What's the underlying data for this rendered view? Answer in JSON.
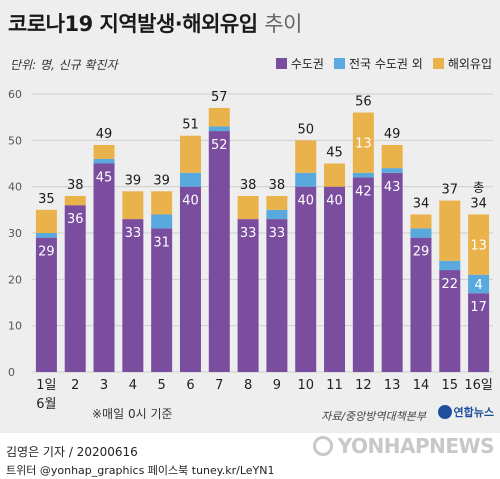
{
  "title": {
    "main": "코로나19 지역발생·해외유입",
    "sub": "추이"
  },
  "unit_label": "단위: 명, 신규 확진자",
  "legend": [
    {
      "label": "수도권",
      "color": "#7b4d9e"
    },
    {
      "label": "전국 수도권 외",
      "color": "#5aa9de"
    },
    {
      "label": "해외유입",
      "color": "#e9b24b"
    }
  ],
  "chart_data": {
    "type": "bar",
    "stacked": true,
    "categories": [
      "1일",
      "2",
      "3",
      "4",
      "5",
      "6",
      "7",
      "8",
      "9",
      "10",
      "11",
      "12",
      "13",
      "14",
      "15",
      "16일"
    ],
    "month_label": "6월",
    "series": [
      {
        "name": "수도권",
        "values": [
          29,
          36,
          45,
          33,
          31,
          40,
          52,
          33,
          33,
          40,
          40,
          42,
          43,
          29,
          22,
          17
        ]
      },
      {
        "name": "전국 수도권 외",
        "values": [
          1,
          0,
          1,
          0,
          3,
          3,
          1,
          0,
          2,
          3,
          0,
          1,
          1,
          2,
          2,
          4
        ]
      },
      {
        "name": "해외유입",
        "values": [
          5,
          2,
          3,
          6,
          5,
          8,
          4,
          5,
          3,
          7,
          5,
          13,
          5,
          3,
          13,
          13
        ]
      }
    ],
    "totals": [
      35,
      38,
      49,
      39,
      39,
      51,
      57,
      38,
      38,
      50,
      45,
      56,
      49,
      34,
      37,
      34
    ],
    "total_prefix_last": "총",
    "inner_labels": [
      {
        "index": 11,
        "series": 2,
        "text": "13"
      },
      {
        "index": 15,
        "series": 1,
        "text": "4"
      },
      {
        "index": 15,
        "series": 2,
        "text": "13"
      }
    ],
    "ylim": [
      0,
      60
    ],
    "yticks": [
      0,
      10,
      20,
      30,
      40,
      50,
      60
    ],
    "grid": true
  },
  "note": "※매일 0시 기준",
  "source": "자료/중앙방역대책본부",
  "brand": "연합뉴스",
  "credit_line1": "김영은 기자 / 20200616",
  "credit_line2": "트위터 @yonhap_graphics  페이스북 tuney.kr/LeYN1",
  "watermark": "YONHAPNEWS"
}
